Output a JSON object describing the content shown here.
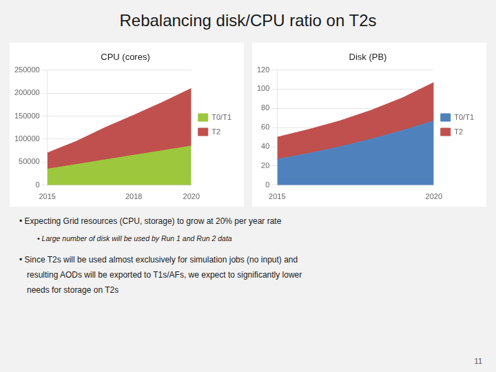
{
  "title": "Rebalancing disk/CPU ratio on T2s",
  "annotations": [
    "• Expecting Grid resources (CPU, storage) to grow at 20% per year rate",
    "• Large number of disk will be used by Run 1 and Run 2 data",
    "• Since T2s will be used almost exclusively for simulation jobs (no input) and",
    "resulting AODs will be exported to T1s/AFs, we expect to significantly lower",
    "needs for storage on T2s",
    "11"
  ],
  "chart_data": [
    {
      "type": "area",
      "title": "CPU (cores)",
      "x": [
        2015,
        2016,
        2017,
        2018,
        2019,
        2020
      ],
      "series": [
        {
          "name": "T0/T1",
          "color": "#9dc73c",
          "values": [
            35000,
            45000,
            55000,
            65000,
            75000,
            85000
          ]
        },
        {
          "name": "T2",
          "color": "#c0504d",
          "values": [
            35000,
            50000,
            70000,
            87000,
            105000,
            125000
          ]
        }
      ],
      "xlim": [
        2015,
        2020
      ],
      "xticks": [
        2015,
        2018,
        2020
      ],
      "ylim": [
        0,
        250000
      ],
      "yticks": [
        0,
        50000,
        100000,
        150000,
        200000,
        250000
      ],
      "stacked": true,
      "grid": true,
      "legend": "right"
    },
    {
      "type": "area",
      "title": "Disk (PB)",
      "x": [
        2015,
        2016,
        2017,
        2018,
        2019,
        2020
      ],
      "series": [
        {
          "name": "T0/T1",
          "color": "#4f81bd",
          "values": [
            27,
            33,
            40,
            48,
            57,
            67
          ]
        },
        {
          "name": "T2",
          "color": "#c0504d",
          "values": [
            23,
            25,
            27,
            30,
            34,
            40
          ]
        }
      ],
      "xlim": [
        2015,
        2020
      ],
      "xticks": [
        2015,
        2020
      ],
      "ylim": [
        0,
        120
      ],
      "yticks": [
        0,
        20,
        40,
        60,
        80,
        100,
        120
      ],
      "stacked": true,
      "grid": true,
      "legend": "right"
    }
  ]
}
